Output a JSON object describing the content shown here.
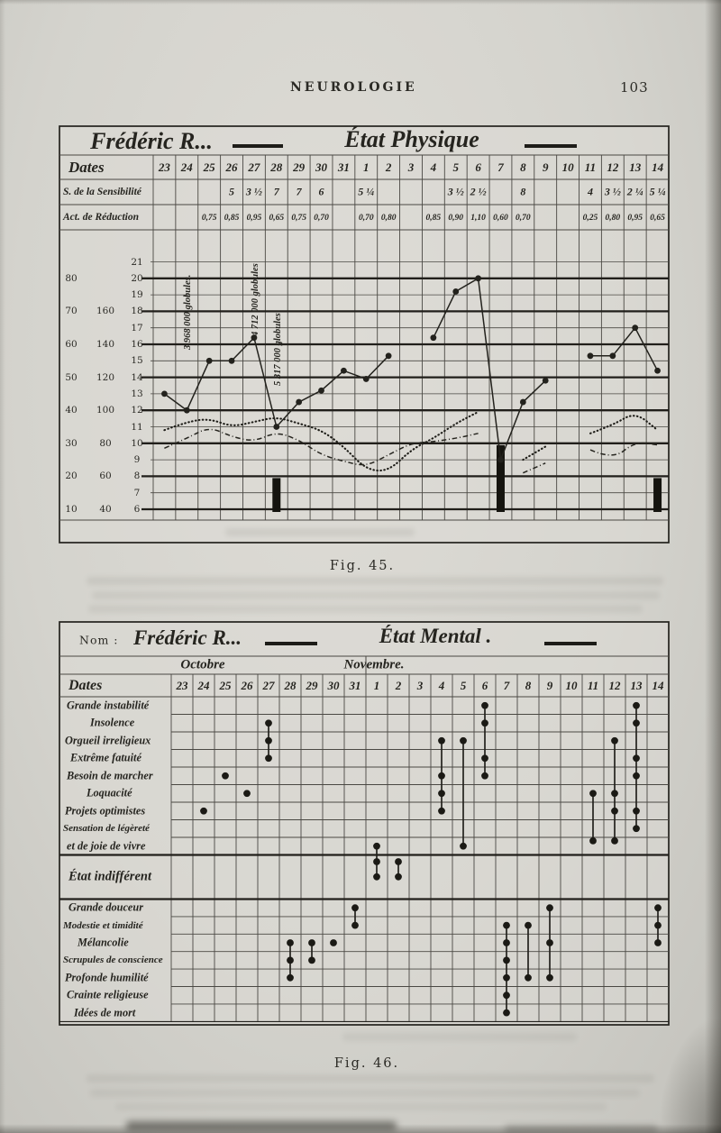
{
  "page": {
    "header": "NEUROLOGIE",
    "page_number": "103",
    "fig45_caption": "Fig. 45.",
    "fig46_caption": "Fig. 46."
  },
  "fig45": {
    "title_name": "Frédéric R...",
    "title_state": "État Physique",
    "row_labels": {
      "dates": "Dates",
      "sensibility": "S. de la Sensibilité",
      "reduction": "Act. de Réduction"
    },
    "dates": [
      "23",
      "24",
      "25",
      "26",
      "27",
      "28",
      "29",
      "30",
      "31",
      "1",
      "2",
      "3",
      "4",
      "5",
      "6",
      "7",
      "8",
      "9",
      "10",
      "11",
      "12",
      "13",
      "14"
    ],
    "sensibility": [
      "",
      "",
      "",
      "5",
      "3 ½",
      "7",
      "7",
      "6",
      "",
      "5 ¼",
      "",
      "",
      "",
      "3 ½",
      "2 ½",
      "",
      "8",
      "",
      "",
      "4",
      "3 ½",
      "2 ¼",
      "5 ¼"
    ],
    "reduction": [
      "",
      "",
      "0,75",
      "0,85",
      "0,95",
      "0,65",
      "0,75",
      "0,70",
      "",
      "0,70",
      "0,80",
      "",
      "0,85",
      "0,90",
      "1,10",
      "0,60",
      "0,70",
      "",
      "",
      "0,25",
      "0,80",
      "0,95",
      "0,65"
    ],
    "chart_data": {
      "type": "line",
      "x_categories": [
        "23",
        "24",
        "25",
        "26",
        "27",
        "28",
        "29",
        "30",
        "31",
        "1",
        "2",
        "3",
        "4",
        "5",
        "6",
        "7",
        "8",
        "9",
        "10",
        "11",
        "12",
        "13",
        "14"
      ],
      "y_axis": {
        "inner_scale": [
          21,
          20,
          19,
          18,
          17,
          16,
          15,
          14,
          13,
          12,
          11,
          10,
          9,
          8,
          7,
          6
        ],
        "middle_scale": [
          [
            160,
            18
          ],
          [
            140,
            16
          ],
          [
            120,
            14
          ],
          [
            100,
            12
          ],
          [
            80,
            10
          ],
          [
            60,
            8
          ],
          [
            40,
            6
          ]
        ],
        "outer_scale": [
          [
            80,
            20
          ],
          [
            70,
            18
          ],
          [
            60,
            16
          ],
          [
            50,
            14
          ],
          [
            40,
            12
          ],
          [
            30,
            10
          ],
          [
            20,
            8
          ],
          [
            10,
            6
          ]
        ]
      },
      "series": [
        {
          "name": "courbe principale à points",
          "style": "solid-with-dots",
          "values": [
            13,
            12,
            15,
            15,
            16.4,
            11,
            12.5,
            13.2,
            14.4,
            13.9,
            15.3,
            null,
            16.4,
            19.2,
            20,
            9,
            12.5,
            13.8,
            null,
            15.3,
            15.3,
            17,
            14.4
          ]
        },
        {
          "name": "courbe pointillée",
          "style": "dotted",
          "values": [
            10.8,
            11.3,
            11.5,
            11,
            11.3,
            11.6,
            11.2,
            10.8,
            9.8,
            8.4,
            8.3,
            9.6,
            10.3,
            11.2,
            11.9,
            null,
            9,
            9.8,
            null,
            10.6,
            11.1,
            11.9,
            10.8
          ]
        },
        {
          "name": "courbe mixte",
          "style": "dash-dot",
          "values": [
            9.7,
            10.3,
            11,
            10.4,
            10.1,
            10.7,
            10.2,
            9.3,
            8.9,
            8.6,
            9.3,
            10,
            10.1,
            10.3,
            10.6,
            null,
            8.2,
            8.8,
            null,
            9.6,
            9,
            10.1,
            9.9
          ]
        }
      ],
      "annotations": [
        {
          "date": "24",
          "text": "3 968 000 globules."
        },
        {
          "date": "27",
          "text": "4 712 000 globules"
        },
        {
          "date": "28",
          "text": "5 317 000 globules"
        }
      ],
      "bars": [
        {
          "date": "28",
          "from_row": 8,
          "to_row": 6
        },
        {
          "date": "7",
          "from_row": 10,
          "to_row": 6
        },
        {
          "date": "14",
          "from_row": 8,
          "to_row": 6
        }
      ]
    }
  },
  "fig46": {
    "title_label": "Nom :",
    "title_name": "Frédéric R...",
    "title_state": "État Mental .",
    "dates_label": "Dates",
    "months": [
      {
        "label": "Octobre",
        "covers_dates": "23–31"
      },
      {
        "label": "Novembre.",
        "covers_dates": "1–14"
      }
    ],
    "dates": [
      "23",
      "24",
      "25",
      "26",
      "27",
      "28",
      "29",
      "30",
      "31",
      "1",
      "2",
      "3",
      "4",
      "5",
      "6",
      "7",
      "8",
      "9",
      "10",
      "11",
      "12",
      "13",
      "14"
    ],
    "categories": [
      "Grande instabilité",
      "Insolence",
      "Orgueil irreligieux",
      "Extrême fatuité",
      "Besoin de marcher",
      "Loquacité",
      "Projets optimistes",
      "Sensation de légèreté",
      "et de joie de vivre",
      "État indifférent",
      "Grande douceur",
      "Modestie et timidité",
      "Mélancolie",
      "Scrupules de conscience",
      "Profonde humilité",
      "Crainte religieuse",
      "Idées de mort"
    ],
    "chart_data": {
      "type": "scatter",
      "markings": [
        {
          "date": "24",
          "rows": [
            6
          ]
        },
        {
          "date": "25",
          "rows": [
            4
          ]
        },
        {
          "date": "26",
          "rows": [
            5
          ]
        },
        {
          "date": "27",
          "rows": [
            1,
            2,
            3
          ]
        },
        {
          "date": "1",
          "rows": [
            8,
            9,
            9.35
          ]
        },
        {
          "date": "2",
          "rows": [
            9,
            9.35
          ]
        },
        {
          "date": "4",
          "rows": [
            2,
            4,
            5,
            6
          ]
        },
        {
          "date": "5",
          "rows": [
            2,
            8
          ]
        },
        {
          "date": "6",
          "rows": [
            0,
            1,
            3,
            4
          ]
        },
        {
          "date": "11",
          "rows": [
            5,
            7.7
          ]
        },
        {
          "date": "12",
          "rows": [
            2,
            5,
            6,
            7.7
          ]
        },
        {
          "date": "13",
          "rows": [
            0,
            1,
            3,
            4,
            6,
            7
          ]
        },
        {
          "date": "28",
          "rows": [
            12,
            13,
            14
          ]
        },
        {
          "date": "29",
          "rows": [
            12,
            13
          ]
        },
        {
          "date": "30",
          "rows": [
            12
          ]
        },
        {
          "date": "31",
          "rows": [
            10,
            11
          ]
        },
        {
          "date": "7",
          "rows": [
            11,
            12,
            13,
            14,
            15,
            16
          ]
        },
        {
          "date": "8",
          "rows": [
            11,
            14
          ]
        },
        {
          "date": "9",
          "rows": [
            10,
            12,
            14
          ]
        },
        {
          "date": "14",
          "rows": [
            10,
            11,
            12
          ]
        }
      ]
    }
  }
}
